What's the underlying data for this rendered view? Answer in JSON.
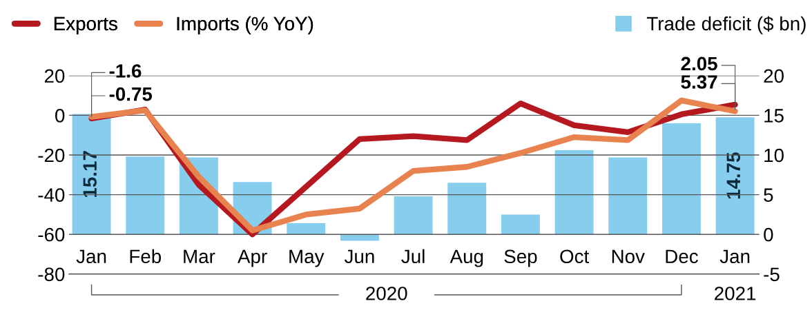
{
  "chart_data": {
    "type": "line",
    "categories": [
      "Jan",
      "Feb",
      "Mar",
      "Apr",
      "May",
      "Jun",
      "Jul",
      "Aug",
      "Sep",
      "Oct",
      "Nov",
      "Dec",
      "Jan"
    ],
    "series": [
      {
        "name": "Trade deficit ($ bn)",
        "type": "bar",
        "axis": "y2",
        "color": "#87cdee",
        "values": [
          15.17,
          9.8,
          9.7,
          6.6,
          1.4,
          -0.8,
          4.8,
          6.5,
          2.5,
          10.6,
          9.7,
          14,
          14.75
        ],
        "value_labels": [
          "15.17",
          null,
          null,
          null,
          null,
          null,
          null,
          null,
          null,
          null,
          null,
          null,
          "14.75"
        ]
      },
      {
        "name": "Exports",
        "color": "#b5191f",
        "values": [
          -1.6,
          2.9,
          -35,
          -60,
          -36,
          -12,
          -10.5,
          -12.5,
          6,
          -5,
          -8.5,
          0.5,
          5.37
        ],
        "value_labels": [
          "-1.6",
          null,
          null,
          null,
          null,
          null,
          null,
          null,
          null,
          null,
          null,
          null,
          "5.37"
        ]
      },
      {
        "name": "Imports (% YoY)",
        "color": "#e8834f",
        "values": [
          -0.75,
          2.5,
          -31,
          -58,
          -50,
          -47,
          -28,
          -26,
          -19,
          -11,
          -12.5,
          7.5,
          2.05
        ],
        "value_labels": [
          "-0.75",
          null,
          null,
          null,
          null,
          null,
          null,
          null,
          null,
          null,
          null,
          null,
          "2.05"
        ]
      }
    ],
    "ylim": [
      -80,
      20
    ],
    "yticks": [
      -80,
      -60,
      -40,
      -20,
      0,
      20
    ],
    "y2lim": [
      -5,
      20
    ],
    "y2ticks": [
      -5,
      0,
      5,
      10,
      15,
      20
    ],
    "grid": "y",
    "legend": "top",
    "annotations": [
      "2020",
      "2021"
    ]
  }
}
